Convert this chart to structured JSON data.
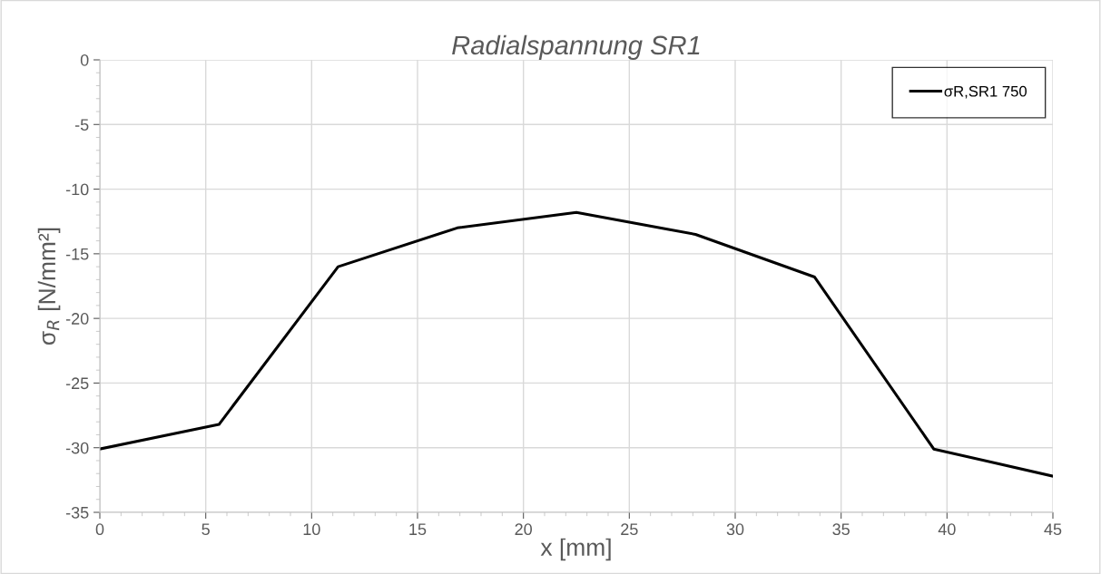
{
  "chart_data": {
    "type": "line",
    "title": "Radialspannung SR1",
    "xlabel": "x [mm]",
    "ylabel": "σ$_{R}$ [N/mm²]",
    "x": [
      0,
      5.625,
      11.25,
      16.875,
      22.5,
      28.125,
      33.75,
      39.375,
      45
    ],
    "series": [
      {
        "name": "σR,SR1 750",
        "color": "#000000",
        "values": [
          -30.1,
          -28.2,
          -16.0,
          -13.0,
          -11.8,
          -13.5,
          -16.8,
          -30.1,
          -32.2
        ]
      }
    ],
    "xlim": [
      0,
      45
    ],
    "xticks": [
      0,
      5,
      10,
      15,
      20,
      25,
      30,
      35,
      40,
      45
    ],
    "ylim": [
      -35,
      0
    ],
    "yticks": [
      -35,
      -30,
      -25,
      -20,
      -15,
      -10,
      -5,
      0
    ],
    "grid": true,
    "legend": "top right",
    "marker": "none",
    "line_style": "solid"
  }
}
